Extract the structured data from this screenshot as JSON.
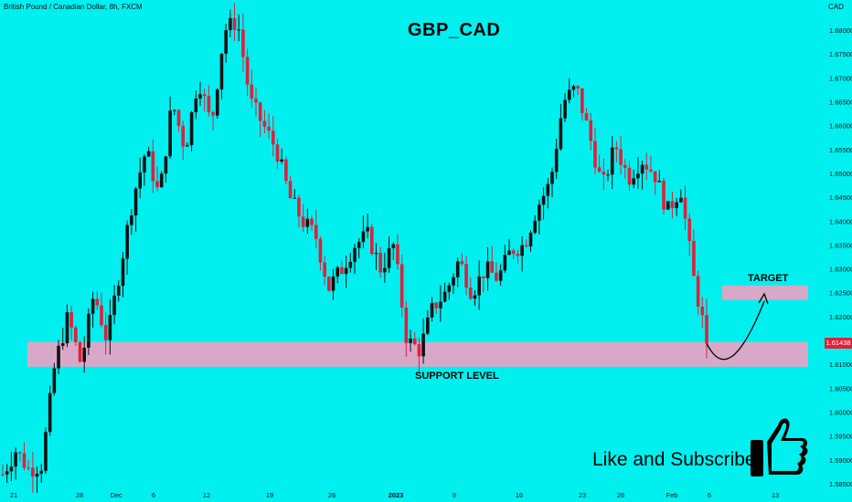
{
  "header": {
    "instrument": "British Pound / Canadian Dollar, 8h, FXCM",
    "currency": "CAD",
    "title": "GBP_CAD"
  },
  "annotations": {
    "support_label": "SUPPORT LEVEL",
    "target_label": "TARGET",
    "cta": "Like and Subscribe",
    "current_price": "1.61438"
  },
  "colors": {
    "background": "#00f0f0",
    "bull_candle": "#111111",
    "bear_candle": "#e0203a",
    "zone": "#d8a8c8",
    "arrow": "#000000"
  },
  "chart_data": {
    "type": "candlestick",
    "symbol": "GBPCAD",
    "timeframe": "8h",
    "y_ticks": [
      "1.68000",
      "1.67500",
      "1.67000",
      "1.66500",
      "1.66000",
      "1.65500",
      "1.65000",
      "1.64500",
      "1.64000",
      "1.63500",
      "1.63000",
      "1.62500",
      "1.62000",
      "1.61500",
      "1.61000",
      "1.60500",
      "1.60000",
      "1.59500",
      "1.59000",
      "1.58500"
    ],
    "x_ticks": [
      "21",
      "28",
      "Dec",
      "6",
      "12",
      "19",
      "26",
      "2023",
      "9",
      "16",
      "23",
      "26",
      "Feb",
      "6",
      "13"
    ],
    "ylim": [
      1.584,
      1.684
    ],
    "support_zone": [
      1.6095,
      1.6147
    ],
    "target_zone": [
      1.6235,
      1.6265
    ],
    "last_price": 1.61438,
    "path": [
      1.587,
      1.592,
      1.588,
      1.589,
      1.61,
      1.62,
      1.61,
      1.625,
      1.615,
      1.63,
      1.645,
      1.655,
      1.645,
      1.665,
      1.655,
      1.67,
      1.66,
      1.68,
      1.682,
      1.665,
      1.66,
      1.655,
      1.645,
      1.64,
      1.637,
      1.626,
      1.63,
      1.635,
      1.637,
      1.63,
      1.635,
      1.615,
      1.613,
      1.622,
      1.625,
      1.632,
      1.625,
      1.63,
      1.628,
      1.634,
      1.635,
      1.643,
      1.648,
      1.665,
      1.668,
      1.658,
      1.647,
      1.656,
      1.649,
      1.653,
      1.65,
      1.642,
      1.647,
      1.628,
      1.615
    ]
  }
}
